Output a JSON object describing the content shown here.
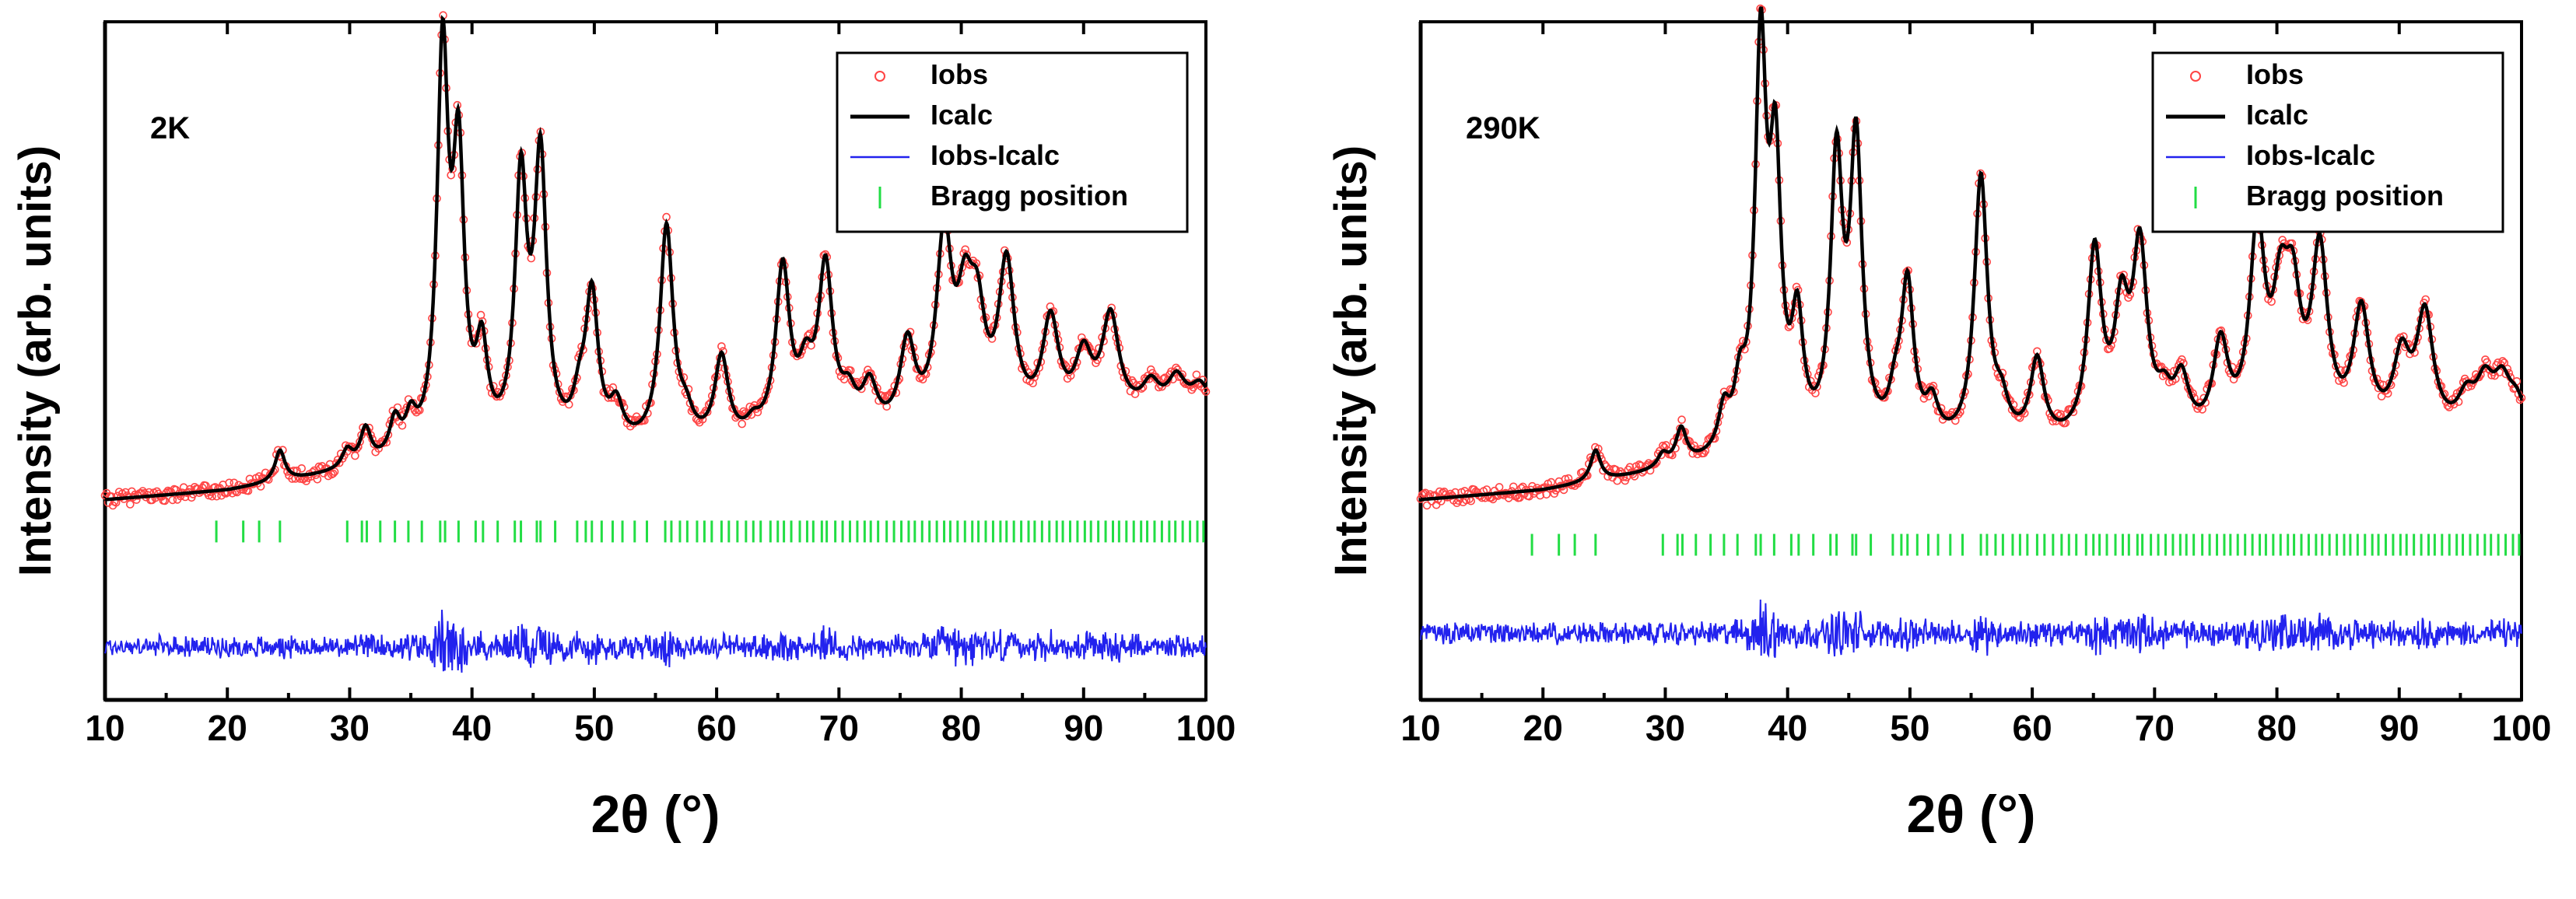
{
  "chart_data": [
    {
      "type": "line",
      "panel_label": "2K",
      "xlabel": "2θ (°)",
      "ylabel": "Intensity (arb. units)",
      "xlim": [
        10,
        100
      ],
      "xticks": [
        10,
        20,
        30,
        40,
        50,
        60,
        70,
        80,
        90,
        100
      ],
      "ylim": [
        -0.45,
        1.08
      ],
      "legend_position": "top-right",
      "legend": [
        {
          "label": "Iobs",
          "color": "#ff4444",
          "marker": "circle"
        },
        {
          "label": "Icalc",
          "color": "#000000",
          "marker": "line"
        },
        {
          "label": "Iobs-Icalc",
          "color": "#2222ee",
          "marker": "line"
        },
        {
          "label": "Bragg position",
          "color": "#22dd44",
          "marker": "tick"
        }
      ],
      "background": [
        [
          10,
          0.0
        ],
        [
          20,
          0.02
        ],
        [
          25,
          0.04
        ],
        [
          35,
          0.08
        ],
        [
          45,
          0.1
        ],
        [
          60,
          0.11
        ],
        [
          80,
          0.14
        ],
        [
          100,
          0.2
        ]
      ],
      "peaks": [
        {
          "pos": 24.3,
          "height": 0.07
        },
        {
          "pos": 29.8,
          "height": 0.04
        },
        {
          "pos": 31.3,
          "height": 0.08
        },
        {
          "pos": 33.7,
          "height": 0.08
        },
        {
          "pos": 35.0,
          "height": 0.07
        },
        {
          "pos": 37.6,
          "height": 0.88
        },
        {
          "pos": 38.9,
          "height": 0.62
        },
        {
          "pos": 40.8,
          "height": 0.2
        },
        {
          "pos": 44.0,
          "height": 0.58
        },
        {
          "pos": 45.6,
          "height": 0.63
        },
        {
          "pos": 48.8,
          "height": 0.08
        },
        {
          "pos": 49.8,
          "height": 0.33
        },
        {
          "pos": 51.8,
          "height": 0.08
        },
        {
          "pos": 55.9,
          "height": 0.49
        },
        {
          "pos": 57.5,
          "height": 0.05
        },
        {
          "pos": 60.4,
          "height": 0.19
        },
        {
          "pos": 63.0,
          "height": 0.03
        },
        {
          "pos": 65.4,
          "height": 0.38
        },
        {
          "pos": 67.3,
          "height": 0.12
        },
        {
          "pos": 68.9,
          "height": 0.37
        },
        {
          "pos": 70.8,
          "height": 0.07
        },
        {
          "pos": 72.5,
          "height": 0.1
        },
        {
          "pos": 75.6,
          "height": 0.19
        },
        {
          "pos": 78.6,
          "height": 0.42
        },
        {
          "pos": 80.3,
          "height": 0.23
        },
        {
          "pos": 81.3,
          "height": 0.21
        },
        {
          "pos": 83.7,
          "height": 0.35
        },
        {
          "pos": 87.3,
          "height": 0.22
        },
        {
          "pos": 90.0,
          "height": 0.13
        },
        {
          "pos": 92.2,
          "height": 0.22
        },
        {
          "pos": 95.5,
          "height": 0.06
        },
        {
          "pos": 97.6,
          "height": 0.07
        },
        {
          "pos": 99.5,
          "height": 0.05
        }
      ],
      "difference_offset": -0.33,
      "bragg_level": -0.07,
      "bragg_positions": [
        19.1,
        21.3,
        22.6,
        24.3,
        29.8,
        31.0,
        31.4,
        32.5,
        33.7,
        34.8,
        35.9,
        37.4,
        37.8,
        38.9,
        40.3,
        40.9,
        42.1,
        43.5,
        44.0,
        45.3,
        45.6,
        46.8,
        48.6,
        49.3,
        49.8,
        50.6,
        51.5,
        52.3,
        53.3,
        54.3,
        55.8,
        56.3,
        57.0,
        57.6,
        58.4,
        59.0,
        59.6,
        60.4,
        61.0,
        61.7,
        62.4,
        63.0,
        63.6,
        64.4,
        65.0,
        65.5,
        66.1,
        66.8,
        67.4,
        67.9,
        68.6,
        69.0,
        69.7,
        70.3,
        70.9,
        71.5,
        72.1,
        72.6,
        73.2,
        73.9,
        74.5,
        75.1,
        75.7,
        76.2,
        76.8,
        77.4,
        78.0,
        78.6,
        79.1,
        79.7,
        80.3,
        80.9,
        81.4,
        82.0,
        82.6,
        83.2,
        83.7,
        84.3,
        84.9,
        85.5,
        86.0,
        86.6,
        87.2,
        87.8,
        88.3,
        88.9,
        89.5,
        90.1,
        90.6,
        91.2,
        91.8,
        92.4,
        92.9,
        93.5,
        94.1,
        94.7,
        95.2,
        95.8,
        96.4,
        97.0,
        97.5,
        98.1,
        98.7,
        99.3,
        99.8
      ]
    },
    {
      "type": "line",
      "panel_label": "290K",
      "xlabel": "2θ (°)",
      "ylabel": "Intensity (arb. units)",
      "xlim": [
        10,
        100
      ],
      "xticks": [
        10,
        20,
        30,
        40,
        50,
        60,
        70,
        80,
        90,
        100
      ],
      "ylim": [
        -0.45,
        1.08
      ],
      "legend_position": "top-right",
      "legend": [
        {
          "label": "Iobs",
          "color": "#ff4444",
          "marker": "circle"
        },
        {
          "label": "Icalc",
          "color": "#000000",
          "marker": "line"
        },
        {
          "label": "Iobs-Icalc",
          "color": "#2222ee",
          "marker": "line"
        },
        {
          "label": "Bragg position",
          "color": "#22dd44",
          "marker": "tick"
        }
      ],
      "background": [
        [
          10,
          0.0
        ],
        [
          20,
          0.02
        ],
        [
          25,
          0.04
        ],
        [
          35,
          0.08
        ],
        [
          45,
          0.1
        ],
        [
          60,
          0.11
        ],
        [
          80,
          0.12
        ],
        [
          100,
          0.14
        ]
      ],
      "peaks": [
        {
          "pos": 24.3,
          "height": 0.07
        },
        {
          "pos": 29.8,
          "height": 0.03
        },
        {
          "pos": 31.3,
          "height": 0.08
        },
        {
          "pos": 34.8,
          "height": 0.09
        },
        {
          "pos": 36.1,
          "height": 0.12
        },
        {
          "pos": 37.8,
          "height": 0.88
        },
        {
          "pos": 39.0,
          "height": 0.6
        },
        {
          "pos": 40.8,
          "height": 0.26
        },
        {
          "pos": 44.0,
          "height": 0.62
        },
        {
          "pos": 45.6,
          "height": 0.66
        },
        {
          "pos": 48.8,
          "height": 0.08
        },
        {
          "pos": 49.8,
          "height": 0.35
        },
        {
          "pos": 51.8,
          "height": 0.08
        },
        {
          "pos": 55.8,
          "height": 0.6
        },
        {
          "pos": 57.5,
          "height": 0.07
        },
        {
          "pos": 60.4,
          "height": 0.18
        },
        {
          "pos": 65.1,
          "height": 0.42
        },
        {
          "pos": 67.3,
          "height": 0.26
        },
        {
          "pos": 68.8,
          "height": 0.41
        },
        {
          "pos": 70.8,
          "height": 0.07
        },
        {
          "pos": 72.2,
          "height": 0.12
        },
        {
          "pos": 75.4,
          "height": 0.2
        },
        {
          "pos": 78.4,
          "height": 0.45
        },
        {
          "pos": 80.3,
          "height": 0.25
        },
        {
          "pos": 81.3,
          "height": 0.26
        },
        {
          "pos": 83.5,
          "height": 0.4
        },
        {
          "pos": 86.9,
          "height": 0.27
        },
        {
          "pos": 90.2,
          "height": 0.16
        },
        {
          "pos": 92.1,
          "height": 0.26
        },
        {
          "pos": 95.5,
          "height": 0.07
        },
        {
          "pos": 97.0,
          "height": 0.1
        },
        {
          "pos": 98.4,
          "height": 0.1
        },
        {
          "pos": 99.6,
          "height": 0.06
        }
      ],
      "difference_offset": -0.3,
      "bragg_level": -0.1,
      "bragg_positions": [
        19.1,
        21.3,
        22.6,
        24.3,
        29.8,
        31.0,
        31.4,
        32.5,
        33.7,
        34.8,
        35.9,
        37.4,
        37.8,
        38.9,
        40.3,
        40.9,
        42.1,
        43.5,
        44.0,
        45.3,
        45.6,
        46.8,
        48.6,
        49.3,
        49.8,
        50.6,
        51.5,
        52.3,
        53.3,
        54.3,
        55.8,
        56.3,
        57.0,
        57.6,
        58.4,
        59.0,
        59.6,
        60.4,
        61.0,
        61.7,
        62.4,
        63.0,
        63.6,
        64.4,
        65.0,
        65.5,
        66.1,
        66.8,
        67.4,
        67.9,
        68.6,
        69.0,
        69.7,
        70.3,
        70.9,
        71.5,
        72.1,
        72.6,
        73.2,
        73.9,
        74.5,
        75.1,
        75.7,
        76.2,
        76.8,
        77.4,
        78.0,
        78.6,
        79.1,
        79.7,
        80.3,
        80.9,
        81.4,
        82.0,
        82.6,
        83.2,
        83.7,
        84.3,
        84.9,
        85.5,
        86.0,
        86.6,
        87.2,
        87.8,
        88.3,
        88.9,
        89.5,
        90.1,
        90.6,
        91.2,
        91.8,
        92.4,
        92.9,
        93.5,
        94.1,
        94.7,
        95.2,
        95.8,
        96.4,
        97.0,
        97.5,
        98.1,
        98.7,
        99.3,
        99.8
      ]
    }
  ]
}
